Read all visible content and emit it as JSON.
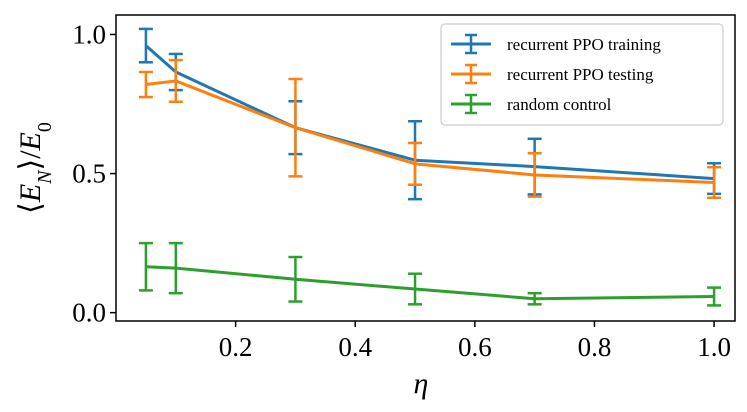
{
  "chart_data": {
    "type": "line",
    "title": "",
    "xlabel": "η",
    "ylabel": "⟨E_N⟩/E_0",
    "xlim": [
      0.0,
      1.035
    ],
    "ylim": [
      -0.03,
      1.07
    ],
    "xticks": [
      {
        "value": 0.2,
        "label": "0.2"
      },
      {
        "value": 0.4,
        "label": "0.4"
      },
      {
        "value": 0.6,
        "label": "0.6"
      },
      {
        "value": 0.8,
        "label": "0.8"
      },
      {
        "value": 1.0,
        "label": "1.0"
      }
    ],
    "yticks": [
      {
        "value": 0.0,
        "label": "0.0"
      },
      {
        "value": 0.5,
        "label": "0.5"
      },
      {
        "value": 1.0,
        "label": "1.0"
      }
    ],
    "legend_position": "top-right",
    "x": [
      0.05,
      0.1,
      0.3,
      0.5,
      0.7,
      1.0
    ],
    "series": [
      {
        "name": "recurrent PPO training",
        "color": "#1f77b4",
        "values": [
          0.96,
          0.865,
          0.665,
          0.548,
          0.525,
          0.482
        ],
        "errors": [
          0.06,
          0.065,
          0.095,
          0.14,
          0.1,
          0.055
        ]
      },
      {
        "name": "recurrent PPO testing",
        "color": "#ff7f0e",
        "values": [
          0.82,
          0.833,
          0.665,
          0.535,
          0.495,
          0.468
        ],
        "errors": [
          0.045,
          0.075,
          0.175,
          0.075,
          0.078,
          0.055
        ]
      },
      {
        "name": "random control",
        "color": "#2ca02c",
        "values": [
          0.165,
          0.16,
          0.12,
          0.085,
          0.05,
          0.058
        ],
        "errors": [
          0.085,
          0.09,
          0.08,
          0.055,
          0.02,
          0.032
        ]
      }
    ]
  }
}
